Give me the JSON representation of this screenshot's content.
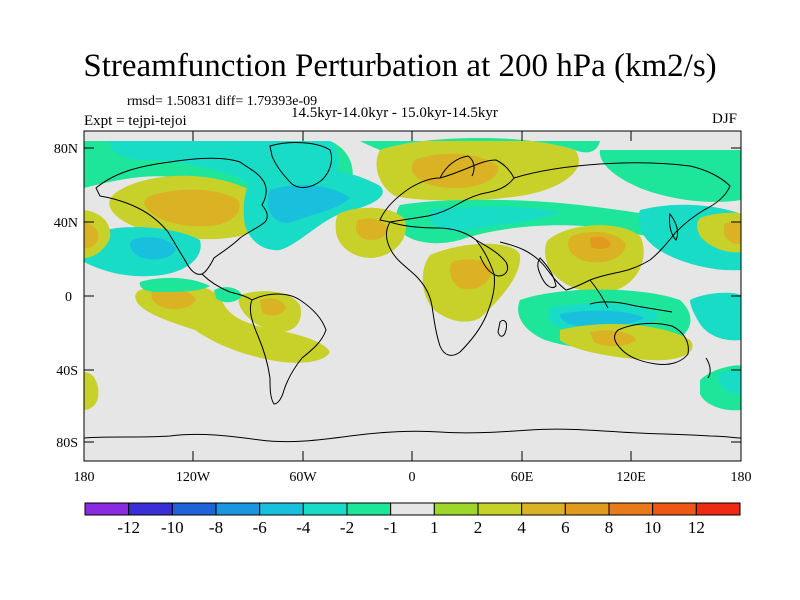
{
  "title": "Streamfunction Perturbation at 200 hPa (km2/s)",
  "stats": "rmsd= 1.50831 diff= 1.79393e-09",
  "subtitle": "14.5kyr-14.0kyr - 15.0kyr-14.5kyr",
  "experiment": "Expt = tejpi-tejoi",
  "season": "DJF",
  "axes": {
    "lat_ticks": [
      "80N",
      "40N",
      "0",
      "40S",
      "80S"
    ],
    "lon_ticks": [
      "180",
      "120W",
      "60W",
      "0",
      "60E",
      "120E",
      "180"
    ]
  },
  "colorbar": {
    "colors": [
      "#8a2be2",
      "#3a2fd6",
      "#1f63d9",
      "#1a96e0",
      "#19c0de",
      "#19dcc7",
      "#1de69a",
      "#e6e6e6",
      "#9ed62a",
      "#c8d12a",
      "#dab224",
      "#e09a1e",
      "#e87a1a",
      "#ee5616",
      "#f02a12"
    ],
    "labels": [
      "-12",
      "-10",
      "-8",
      "-6",
      "-4",
      "-2",
      "-1",
      "1",
      "2",
      "4",
      "6",
      "8",
      "10",
      "12"
    ]
  }
}
